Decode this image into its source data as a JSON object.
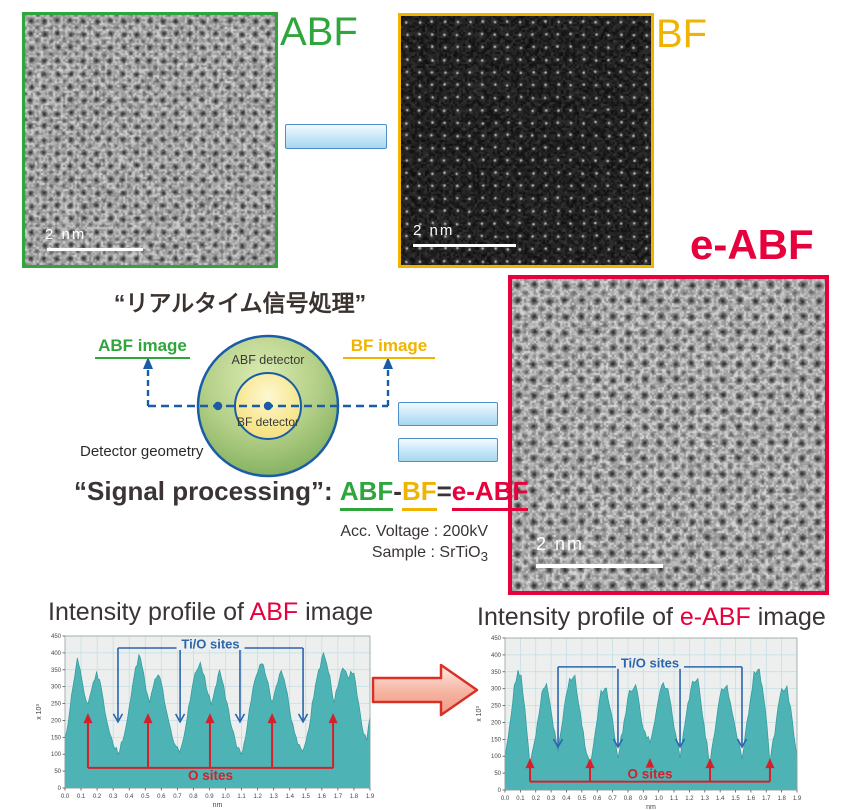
{
  "panels": {
    "abf": {
      "label": "ABF",
      "scale_bar": "2 nm",
      "color": "#2fa63c"
    },
    "bf": {
      "label": "BF",
      "scale_bar": "2 nm",
      "color": "#f0b400"
    },
    "eabf": {
      "label": "e-ABF",
      "scale_bar": "2 nm",
      "color": "#e6003c"
    }
  },
  "diagram": {
    "title": "“リアルタイム信号処理”",
    "abf_image_label": "ABF image",
    "bf_image_label": "BF image",
    "abf_detector_label": "ABF detector",
    "bf_detector_label": "BF detector",
    "geometry_label": "Detector geometry",
    "colors": {
      "green": "#2fa63c",
      "yellow": "#f0b400",
      "red": "#e6003c",
      "blue": "#1a5ca8"
    }
  },
  "formula": {
    "prefix": "“Signal processing”: ",
    "terms": [
      {
        "text": "ABF",
        "color": "#2fa63c",
        "underline": true
      },
      {
        "text": "-",
        "color": "#3a3435",
        "underline": false
      },
      {
        "text": "BF",
        "color": "#f0b400",
        "underline": true
      },
      {
        "text": "=",
        "color": "#3a3435",
        "underline": false
      },
      {
        "text": "e-ABF",
        "color": "#e6003c",
        "underline": true
      }
    ]
  },
  "conditions": {
    "acc_voltage": "Acc. Voltage : 200kV",
    "sample_prefix": "Sample : SrTiO",
    "sample_sub": "3"
  },
  "chart_data": [
    {
      "type": "area",
      "title_prefix": "Intensity profile of ",
      "title_highlight": "ABF",
      "title_suffix": " image",
      "title_highlight_color": "#e6003c",
      "xlabel": "nm",
      "ylabel": "x 10³",
      "xlim": [
        0,
        1.9
      ],
      "ylim": [
        0,
        450
      ],
      "x_ticks": [
        "0.0",
        "0.1",
        "0.2",
        "0.3",
        "0.4",
        "0.5",
        "0.6",
        "0.7",
        "0.8",
        "0.9",
        "1.0",
        "1.1",
        "1.2",
        "1.3",
        "1.4",
        "1.5",
        "1.6",
        "1.7",
        "1.8",
        "1.9"
      ],
      "y_ticks": [
        "0",
        "50",
        "100",
        "150",
        "200",
        "250",
        "300",
        "350",
        "400",
        "450"
      ],
      "grid": true,
      "bg_color": "#ecefee",
      "grid_color": "#c2dce3",
      "fill_color": "#4db3b4",
      "line_color": "#33999b",
      "annotations": {
        "tio": {
          "label": "Ti/O sites",
          "color": "#2b65ad",
          "positions_nm": [
            0.33,
            0.717,
            1.09,
            1.483
          ]
        },
        "o": {
          "label": "O sites",
          "color": "#d5202a",
          "positions_nm": [
            0.143,
            0.517,
            0.903,
            1.29,
            1.67
          ]
        }
      },
      "series": [
        {
          "name": "ABF intensity",
          "points": [
            [
              0.0,
              150
            ],
            [
              0.03,
              230
            ],
            [
              0.06,
              330
            ],
            [
              0.077,
              385
            ],
            [
              0.095,
              350
            ],
            [
              0.12,
              280
            ],
            [
              0.143,
              248
            ],
            [
              0.165,
              290
            ],
            [
              0.197,
              345
            ],
            [
              0.225,
              300
            ],
            [
              0.26,
              200
            ],
            [
              0.3,
              130
            ],
            [
              0.33,
              100
            ],
            [
              0.36,
              140
            ],
            [
              0.4,
              240
            ],
            [
              0.43,
              330
            ],
            [
              0.46,
              395
            ],
            [
              0.49,
              340
            ],
            [
              0.505,
              290
            ],
            [
              0.527,
              252
            ],
            [
              0.55,
              300
            ],
            [
              0.58,
              335
            ],
            [
              0.61,
              290
            ],
            [
              0.65,
              190
            ],
            [
              0.69,
              125
            ],
            [
              0.713,
              105
            ],
            [
              0.74,
              150
            ],
            [
              0.78,
              260
            ],
            [
              0.81,
              340
            ],
            [
              0.843,
              372
            ],
            [
              0.87,
              330
            ],
            [
              0.89,
              280
            ],
            [
              0.91,
              246
            ],
            [
              0.935,
              295
            ],
            [
              0.963,
              350
            ],
            [
              0.99,
              300
            ],
            [
              1.03,
              195
            ],
            [
              1.07,
              120
            ],
            [
              1.097,
              100
            ],
            [
              1.125,
              150
            ],
            [
              1.16,
              260
            ],
            [
              1.19,
              330
            ],
            [
              1.227,
              368
            ],
            [
              1.255,
              325
            ],
            [
              1.275,
              285
            ],
            [
              1.293,
              256
            ],
            [
              1.315,
              300
            ],
            [
              1.347,
              348
            ],
            [
              1.375,
              300
            ],
            [
              1.41,
              200
            ],
            [
              1.45,
              130
            ],
            [
              1.48,
              108
            ],
            [
              1.51,
              160
            ],
            [
              1.55,
              270
            ],
            [
              1.58,
              350
            ],
            [
              1.61,
              400
            ],
            [
              1.64,
              345
            ],
            [
              1.66,
              295
            ],
            [
              1.677,
              252
            ],
            [
              1.7,
              300
            ],
            [
              1.73,
              355
            ],
            [
              1.76,
              330
            ],
            [
              1.8,
              340
            ],
            [
              1.83,
              250
            ],
            [
              1.86,
              160
            ],
            [
              1.88,
              140
            ],
            [
              1.9,
              210
            ]
          ]
        }
      ]
    },
    {
      "type": "area",
      "title_prefix": "Intensity profile of ",
      "title_highlight": "e-ABF",
      "title_suffix": " image",
      "title_highlight_color": "#e6003c",
      "xlabel": "nm",
      "ylabel": "x 10³",
      "xlim": [
        0,
        1.9
      ],
      "ylim": [
        0,
        450
      ],
      "x_ticks": [
        "0.0",
        "0.1",
        "0.2",
        "0.3",
        "0.4",
        "0.5",
        "0.6",
        "0.7",
        "0.8",
        "0.9",
        "1.0",
        "1.1",
        "1.2",
        "1.3",
        "1.4",
        "1.5",
        "1.6",
        "1.7",
        "1.8",
        "1.9"
      ],
      "y_ticks": [
        "0",
        "50",
        "100",
        "150",
        "200",
        "250",
        "300",
        "350",
        "400",
        "450"
      ],
      "grid": true,
      "bg_color": "#ecefee",
      "grid_color": "#c2dce3",
      "fill_color": "#4db3b4",
      "line_color": "#33999b",
      "annotations": {
        "tio": {
          "label": "Ti/O sites",
          "color": "#2b65ad",
          "positions_nm": [
            0.345,
            0.735,
            1.139,
            1.542
          ]
        },
        "o": {
          "label": "O sites",
          "color": "#d5202a",
          "positions_nm": [
            0.163,
            0.553,
            0.943,
            1.334,
            1.724
          ]
        }
      },
      "series": [
        {
          "name": "e-ABF intensity",
          "points": [
            [
              0.0,
              95
            ],
            [
              0.03,
              190
            ],
            [
              0.06,
              310
            ],
            [
              0.085,
              355
            ],
            [
              0.105,
              340
            ],
            [
              0.13,
              240
            ],
            [
              0.163,
              70
            ],
            [
              0.2,
              160
            ],
            [
              0.24,
              290
            ],
            [
              0.27,
              315
            ],
            [
              0.305,
              220
            ],
            [
              0.345,
              115
            ],
            [
              0.385,
              245
            ],
            [
              0.42,
              330
            ],
            [
              0.455,
              340
            ],
            [
              0.49,
              230
            ],
            [
              0.52,
              130
            ],
            [
              0.553,
              72
            ],
            [
              0.59,
              180
            ],
            [
              0.625,
              295
            ],
            [
              0.66,
              302
            ],
            [
              0.7,
              210
            ],
            [
              0.735,
              95
            ],
            [
              0.775,
              205
            ],
            [
              0.81,
              295
            ],
            [
              0.85,
              312
            ],
            [
              0.89,
              200
            ],
            [
              0.943,
              140
            ],
            [
              0.985,
              235
            ],
            [
              1.02,
              310
            ],
            [
              1.06,
              300
            ],
            [
              1.1,
              185
            ],
            [
              1.139,
              95
            ],
            [
              1.18,
              225
            ],
            [
              1.22,
              322
            ],
            [
              1.255,
              330
            ],
            [
              1.295,
              195
            ],
            [
              1.334,
              76
            ],
            [
              1.375,
              205
            ],
            [
              1.41,
              300
            ],
            [
              1.445,
              310
            ],
            [
              1.49,
              205
            ],
            [
              1.542,
              92
            ],
            [
              1.585,
              225
            ],
            [
              1.62,
              350
            ],
            [
              1.655,
              358
            ],
            [
              1.695,
              235
            ],
            [
              1.724,
              78
            ],
            [
              1.765,
              205
            ],
            [
              1.8,
              300
            ],
            [
              1.835,
              308
            ],
            [
              1.87,
              205
            ],
            [
              1.9,
              98
            ]
          ]
        }
      ]
    }
  ]
}
